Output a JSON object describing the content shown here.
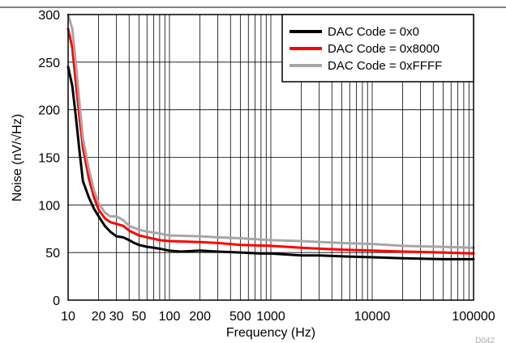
{
  "chart_data": {
    "type": "line",
    "title": "",
    "xlabel": "Frequency (Hz)",
    "ylabel": "Noise (nV/√Hz)",
    "x_scale": "log",
    "xlim": [
      10,
      100000
    ],
    "ylim": [
      0,
      300
    ],
    "grid": true,
    "legend_position": "top-right",
    "x_tick_labels": [
      "10",
      "20",
      "30",
      "50",
      "100",
      "200",
      "500",
      "1000",
      "10000",
      "100000"
    ],
    "x_tick_values": [
      10,
      20,
      30,
      50,
      100,
      200,
      500,
      1000,
      10000,
      100000
    ],
    "y_tick_values": [
      0,
      50,
      100,
      150,
      200,
      250,
      300
    ],
    "footer_code": "D042",
    "series": [
      {
        "name": "DAC Code = 0x0",
        "color": "#000000",
        "points": [
          [
            10,
            245
          ],
          [
            11,
            225
          ],
          [
            12,
            190
          ],
          [
            13,
            155
          ],
          [
            14,
            125
          ],
          [
            16,
            108
          ],
          [
            18,
            96
          ],
          [
            20,
            88
          ],
          [
            23,
            78
          ],
          [
            26,
            72
          ],
          [
            30,
            67
          ],
          [
            35,
            66
          ],
          [
            40,
            63
          ],
          [
            45,
            60
          ],
          [
            50,
            58
          ],
          [
            60,
            56
          ],
          [
            70,
            55
          ],
          [
            80,
            54
          ],
          [
            100,
            52
          ],
          [
            130,
            51
          ],
          [
            200,
            52
          ],
          [
            300,
            51
          ],
          [
            500,
            50
          ],
          [
            800,
            49
          ],
          [
            1000,
            49
          ],
          [
            2000,
            47
          ],
          [
            3000,
            47
          ],
          [
            5000,
            46
          ],
          [
            10000,
            45
          ],
          [
            20000,
            44
          ],
          [
            50000,
            43
          ],
          [
            100000,
            43
          ]
        ]
      },
      {
        "name": "DAC Code = 0x8000",
        "color": "#ff0000",
        "points": [
          [
            10,
            285
          ],
          [
            11,
            265
          ],
          [
            12,
            225
          ],
          [
            13,
            190
          ],
          [
            14,
            160
          ],
          [
            16,
            128
          ],
          [
            18,
            108
          ],
          [
            20,
            95
          ],
          [
            23,
            86
          ],
          [
            26,
            82
          ],
          [
            30,
            80
          ],
          [
            35,
            78
          ],
          [
            40,
            73
          ],
          [
            50,
            68
          ],
          [
            60,
            66
          ],
          [
            80,
            63
          ],
          [
            100,
            62
          ],
          [
            200,
            61
          ],
          [
            300,
            60
          ],
          [
            500,
            58
          ],
          [
            1000,
            57
          ],
          [
            2000,
            55
          ],
          [
            5000,
            53
          ],
          [
            10000,
            52
          ],
          [
            20000,
            51
          ],
          [
            50000,
            50
          ],
          [
            100000,
            49
          ]
        ]
      },
      {
        "name": "DAC Code = 0xFFFF",
        "color": "#a6a6a6",
        "points": [
          [
            10,
            300
          ],
          [
            11,
            285
          ],
          [
            12,
            245
          ],
          [
            13,
            205
          ],
          [
            14,
            170
          ],
          [
            16,
            138
          ],
          [
            18,
            115
          ],
          [
            20,
            102
          ],
          [
            23,
            92
          ],
          [
            26,
            88
          ],
          [
            30,
            88
          ],
          [
            35,
            84
          ],
          [
            40,
            78
          ],
          [
            50,
            74
          ],
          [
            60,
            72
          ],
          [
            80,
            70
          ],
          [
            100,
            68
          ],
          [
            200,
            67
          ],
          [
            300,
            66
          ],
          [
            500,
            65
          ],
          [
            1000,
            63
          ],
          [
            2000,
            62
          ],
          [
            5000,
            60
          ],
          [
            10000,
            59
          ],
          [
            20000,
            57
          ],
          [
            50000,
            56
          ],
          [
            100000,
            55
          ]
        ]
      }
    ]
  }
}
